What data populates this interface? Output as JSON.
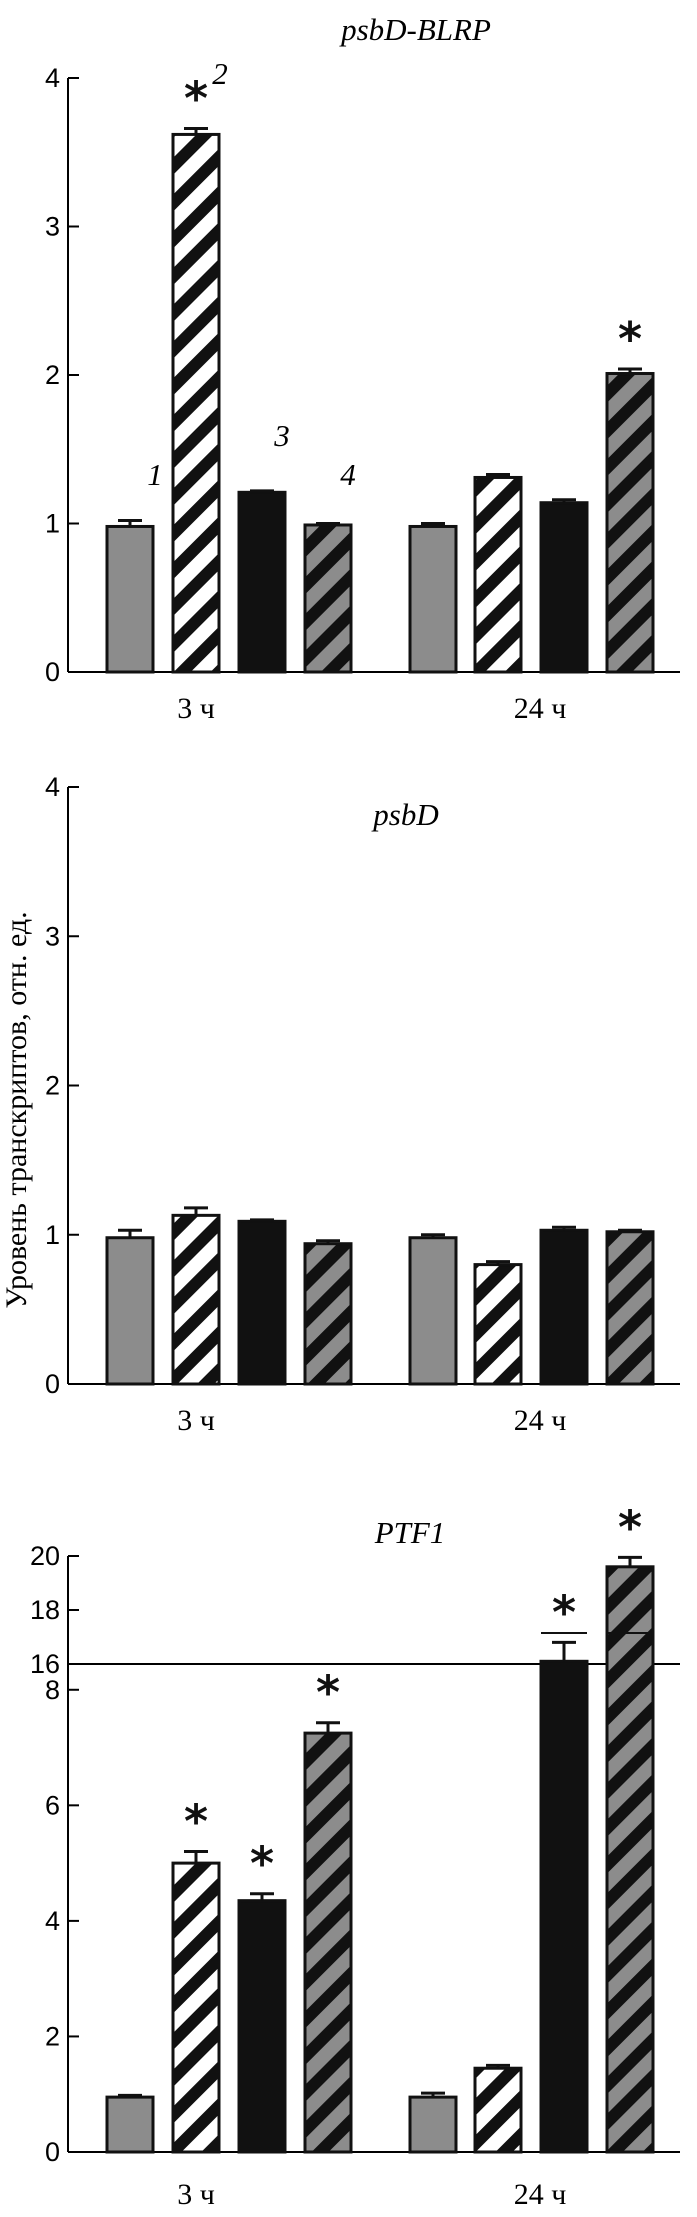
{
  "shared_ylabel": "Уровень транскриптов, отн. ед.",
  "colors": {
    "gray": "#8c8c8c",
    "white": "#ffffff",
    "black": "#111111",
    "stroke": "#111111"
  },
  "chart_data": [
    {
      "type": "bar",
      "title": "psbD-BLRP",
      "categories": [
        "3 ч",
        "24 ч"
      ],
      "ylim": [
        0,
        4
      ],
      "yticks": [
        "0",
        "1",
        "2",
        "3",
        "4"
      ],
      "series": [
        {
          "name": "1",
          "values": [
            0.98,
            0.98
          ],
          "errors": [
            0.04,
            0.02
          ],
          "significant": [
            false,
            false
          ]
        },
        {
          "name": "2",
          "values": [
            3.62,
            1.31
          ],
          "errors": [
            0.04,
            0.02
          ],
          "significant": [
            true,
            false
          ]
        },
        {
          "name": "3",
          "values": [
            1.21,
            1.14
          ],
          "errors": [
            0.01,
            0.02
          ],
          "significant": [
            false,
            false
          ]
        },
        {
          "name": "4",
          "values": [
            0.99,
            2.01
          ],
          "errors": [
            0.01,
            0.03
          ],
          "significant": [
            false,
            true
          ]
        }
      ]
    },
    {
      "type": "bar",
      "title": "psbD",
      "categories": [
        "3 ч",
        "24 ч"
      ],
      "ylim": [
        0,
        4
      ],
      "yticks": [
        "0",
        "1",
        "2",
        "3",
        "4"
      ],
      "series": [
        {
          "values": [
            0.98,
            0.98
          ],
          "errors": [
            0.05,
            0.02
          ],
          "significant": [
            false,
            false
          ]
        },
        {
          "values": [
            1.13,
            0.8
          ],
          "errors": [
            0.05,
            0.02
          ],
          "significant": [
            false,
            false
          ]
        },
        {
          "values": [
            1.09,
            1.03
          ],
          "errors": [
            0.01,
            0.02
          ],
          "significant": [
            false,
            false
          ]
        },
        {
          "values": [
            0.94,
            1.02
          ],
          "errors": [
            0.02,
            0.01
          ],
          "significant": [
            false,
            false
          ]
        }
      ]
    },
    {
      "type": "bar",
      "title": "PTF1",
      "categories": [
        "3 ч",
        "24 ч"
      ],
      "axis_break": {
        "lower_range": [
          0,
          9
        ],
        "upper_range": [
          16,
          20
        ]
      },
      "yticks_lower": [
        "0",
        "2",
        "4",
        "6",
        "8"
      ],
      "yticks_upper": [
        "16",
        "18",
        "20"
      ],
      "series": [
        {
          "values": [
            0.95,
            0.95
          ],
          "errors": [
            0.03,
            0.07
          ],
          "significant": [
            false,
            false
          ]
        },
        {
          "values": [
            5.0,
            1.45
          ],
          "errors": [
            0.2,
            0.05
          ],
          "significant": [
            true,
            false
          ]
        },
        {
          "values": [
            4.35,
            16.1
          ],
          "errors": [
            0.12,
            0.7
          ],
          "significant": [
            true,
            true
          ]
        },
        {
          "values": [
            7.25,
            19.6
          ],
          "errors": [
            0.18,
            0.35
          ],
          "significant": [
            true,
            true
          ]
        }
      ]
    }
  ]
}
